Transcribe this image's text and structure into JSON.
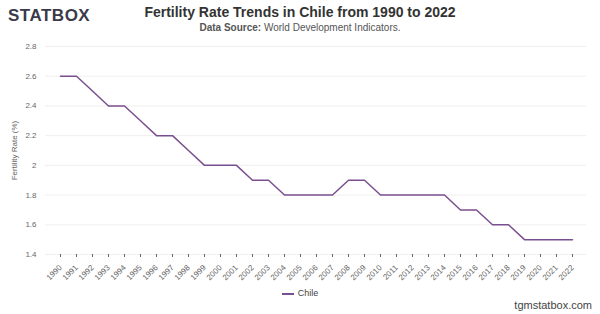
{
  "chart_data": {
    "type": "line",
    "title": "Fertility Rate Trends in Chile from 1990 to 2022",
    "subtitle": "Data Source: World Development Indicators.",
    "logo": "STATBOX",
    "footer": "tgmstatbox.com",
    "y_label": "Fertility Rate (%)",
    "categories": [
      "1990",
      "1991",
      "1992",
      "1993",
      "1994",
      "1995",
      "1996",
      "1997",
      "1998",
      "1999",
      "2000",
      "2001",
      "2002",
      "2003",
      "2004",
      "2005",
      "2006",
      "2007",
      "2008",
      "2009",
      "2010",
      "2011",
      "2012",
      "2013",
      "2014",
      "2015",
      "2016",
      "2017",
      "2018",
      "2019",
      "2020",
      "2021",
      "2022"
    ],
    "series": [
      {
        "name": "Chile",
        "color": "#7b4f8f",
        "values": [
          2.6,
          2.6,
          2.5,
          2.4,
          2.4,
          2.3,
          2.2,
          2.2,
          2.1,
          2.0,
          2.0,
          2.0,
          1.9,
          1.9,
          1.8,
          1.8,
          1.8,
          1.8,
          1.9,
          1.9,
          1.8,
          1.8,
          1.8,
          1.8,
          1.8,
          1.7,
          1.7,
          1.6,
          1.6,
          1.5,
          1.5,
          1.5,
          1.5
        ]
      }
    ],
    "ylim": [
      1.4,
      2.8
    ],
    "yticks": [
      1.4,
      1.6,
      1.8,
      2,
      2.2,
      2.4,
      2.6,
      2.8
    ],
    "grid": true,
    "legend": "bottom"
  }
}
